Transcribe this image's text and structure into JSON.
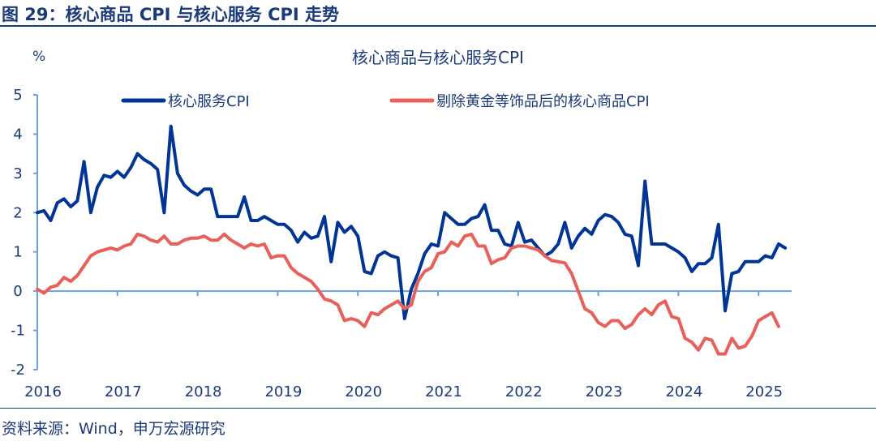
{
  "figure_title": "图 29：核心商品 CPI 与核心服务 CPI 走势",
  "source": "资料来源：Wind，申万宏源研究",
  "chart_data": {
    "type": "line",
    "title": "核心商品与核心服务CPI",
    "ylabel": "%",
    "xlabel": "",
    "ylim": [
      -2,
      5
    ],
    "yticks": [
      "5",
      "4",
      "3",
      "2",
      "1",
      "0",
      "-1",
      "-2"
    ],
    "ytick_values": [
      5,
      4,
      3,
      2,
      1,
      0,
      -1,
      -2
    ],
    "xticks": [
      "2016",
      "2017",
      "2018",
      "2019",
      "2020",
      "2021",
      "2022",
      "2023",
      "2024",
      "2025"
    ],
    "x_start": "2016-01",
    "x_frequency": "monthly",
    "legend_position": "top",
    "series": [
      {
        "name": "核心服务CPI",
        "color": "#003595",
        "values": [
          2.0,
          2.05,
          1.8,
          2.25,
          2.35,
          2.15,
          2.3,
          3.3,
          2.0,
          2.65,
          2.95,
          2.9,
          3.05,
          2.9,
          3.15,
          3.5,
          3.35,
          3.25,
          3.1,
          2.0,
          4.2,
          3.0,
          2.7,
          2.55,
          2.45,
          2.6,
          2.6,
          1.9,
          1.9,
          1.9,
          1.9,
          2.4,
          1.8,
          1.8,
          1.9,
          1.8,
          1.7,
          1.7,
          1.55,
          1.25,
          1.5,
          1.35,
          1.4,
          1.9,
          0.75,
          1.75,
          1.5,
          1.65,
          1.4,
          0.5,
          0.45,
          0.9,
          1.0,
          0.9,
          0.85,
          -0.7,
          0.05,
          0.45,
          0.95,
          1.2,
          1.15,
          2.0,
          1.85,
          1.7,
          1.7,
          1.85,
          1.9,
          2.2,
          1.55,
          1.55,
          1.2,
          1.15,
          1.75,
          1.25,
          1.3,
          1.1,
          0.9,
          1.0,
          1.2,
          1.75,
          1.1,
          1.4,
          1.6,
          1.45,
          1.8,
          1.95,
          1.9,
          1.75,
          1.45,
          1.4,
          0.65,
          2.8,
          1.2,
          1.2,
          1.2,
          1.1,
          1.0,
          0.85,
          0.5,
          0.7,
          0.7,
          0.85,
          1.7,
          -0.5,
          0.45,
          0.5,
          0.75,
          0.75,
          0.75,
          0.9,
          0.85,
          1.2,
          1.1
        ]
      },
      {
        "name": "剔除黄金等饰品后的核心商品CPI",
        "color": "#E8605A",
        "values": [
          0.05,
          -0.05,
          0.1,
          0.15,
          0.35,
          0.25,
          0.4,
          0.65,
          0.9,
          1.0,
          1.05,
          1.1,
          1.05,
          1.15,
          1.2,
          1.45,
          1.4,
          1.3,
          1.25,
          1.4,
          1.2,
          1.2,
          1.3,
          1.35,
          1.35,
          1.4,
          1.3,
          1.3,
          1.45,
          1.3,
          1.2,
          1.1,
          1.2,
          1.15,
          1.2,
          0.85,
          0.9,
          0.9,
          0.6,
          0.45,
          0.35,
          0.25,
          0.05,
          -0.2,
          -0.25,
          -0.35,
          -0.75,
          -0.7,
          -0.75,
          -0.9,
          -0.55,
          -0.6,
          -0.45,
          -0.35,
          -0.25,
          -0.45,
          -0.35,
          0.25,
          0.5,
          0.6,
          0.95,
          1.0,
          1.25,
          1.15,
          1.4,
          1.45,
          1.15,
          1.15,
          0.7,
          0.8,
          0.85,
          1.1,
          1.15,
          1.15,
          1.1,
          1.05,
          0.9,
          0.78,
          0.75,
          0.72,
          0.45,
          0.0,
          -0.45,
          -0.55,
          -0.8,
          -0.9,
          -0.75,
          -0.75,
          -0.95,
          -0.85,
          -0.6,
          -0.45,
          -0.6,
          -0.35,
          -0.25,
          -0.65,
          -0.7,
          -1.2,
          -1.3,
          -1.5,
          -1.2,
          -1.25,
          -1.6,
          -1.6,
          -1.2,
          -1.45,
          -1.4,
          -1.15,
          -0.75,
          -0.65,
          -0.55,
          -0.9
        ]
      }
    ]
  }
}
